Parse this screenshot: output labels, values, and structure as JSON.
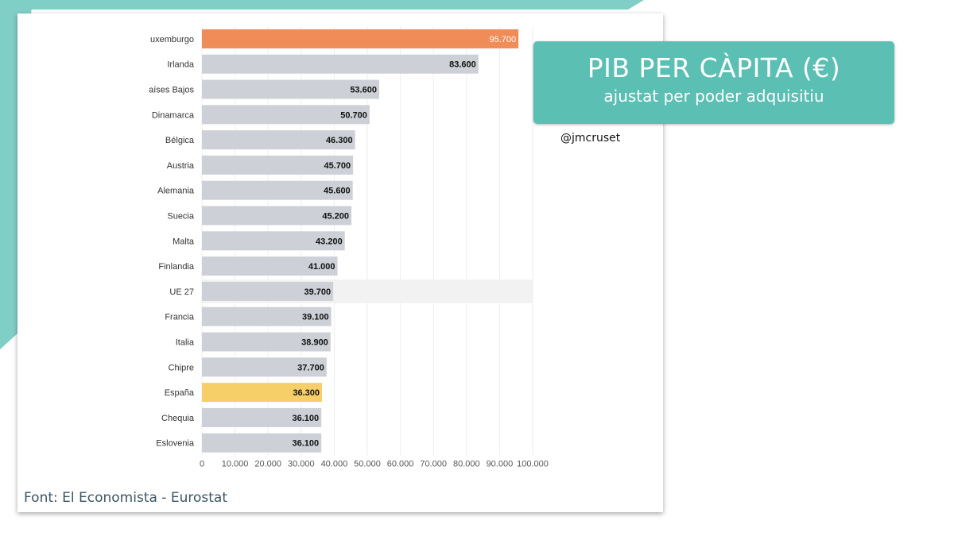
{
  "title": {
    "main": "PIB PER CÀPITA (€)",
    "sub": "ajustat per poder adquisitiu"
  },
  "handle": "@jmcruset",
  "source": "Font: El Economista - Eurostat",
  "colors": {
    "teal": "#5bbfb3",
    "bar_default": "#cdd0d6",
    "bar_luxembourg": "#ef8c57",
    "bar_spain": "#f6cf68"
  },
  "chart_data": {
    "type": "bar",
    "orientation": "horizontal",
    "categories": [
      "uxemburgo",
      "Irlanda",
      "aíses Bajos",
      "Dinamarca",
      "Bélgica",
      "Austria",
      "Alemania",
      "Suecia",
      "Malta",
      "Finlandia",
      "UE 27",
      "Francia",
      "Italia",
      "Chipre",
      "España",
      "Chequia",
      "Eslovenia"
    ],
    "values": [
      95700,
      83600,
      53600,
      50700,
      46300,
      45700,
      45600,
      45200,
      43200,
      41000,
      39700,
      39100,
      38900,
      37700,
      36300,
      36100,
      36100
    ],
    "value_labels": [
      "95.700",
      "83.600",
      "53.600",
      "50.700",
      "46.300",
      "45.700",
      "45.600",
      "45.200",
      "43.200",
      "41.000",
      "39.700",
      "39.100",
      "38.900",
      "37.700",
      "36.300",
      "36.100",
      "36.100"
    ],
    "xlim": [
      0,
      100000
    ],
    "x_ticks": [
      0,
      10000,
      20000,
      30000,
      40000,
      50000,
      60000,
      70000,
      80000,
      90000,
      100000
    ],
    "x_tick_labels": [
      "0",
      "10.000",
      "20.000",
      "30.000",
      "40.000",
      "50.000",
      "60.000",
      "70.000",
      "80.000",
      "90.000",
      "100.000"
    ],
    "highlights": {
      "uxemburgo": "#ef8c57",
      "España": "#f6cf68"
    },
    "grid": true
  }
}
